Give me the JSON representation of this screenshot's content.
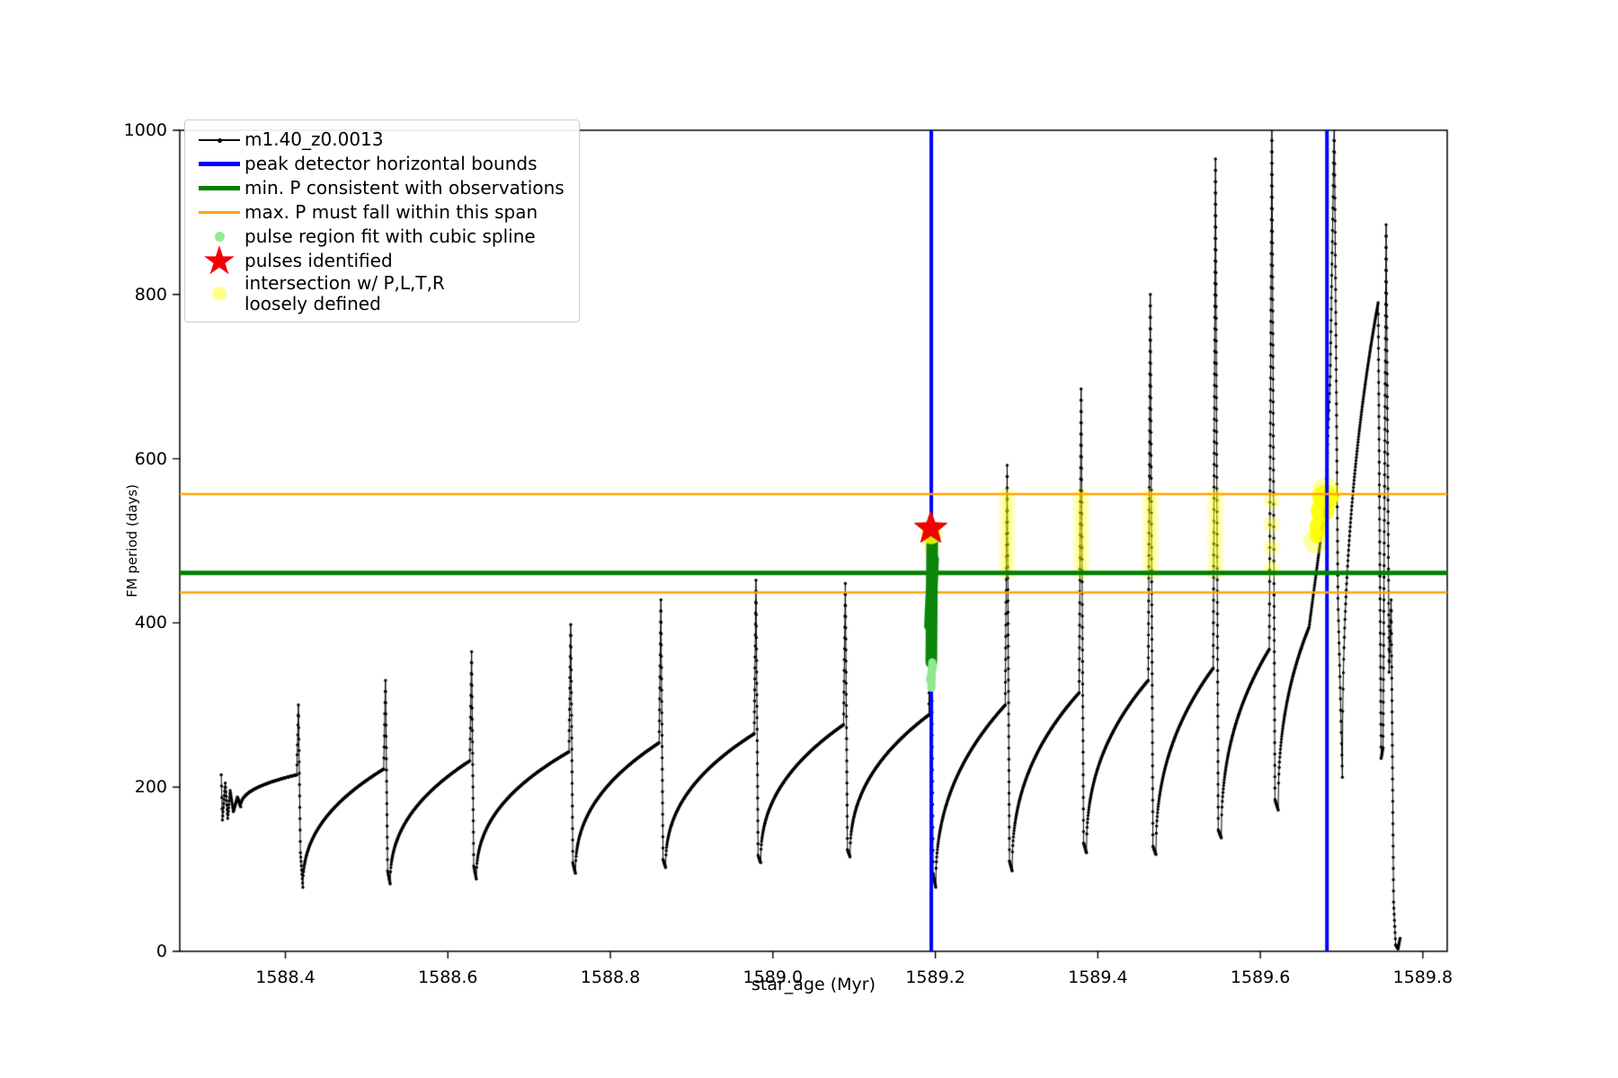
{
  "axes": {
    "xlabel": "star_age (Myr)",
    "ylabel": "FM period (days)",
    "x_ticks": [
      "1588.4",
      "1588.6",
      "1588.8",
      "1589.0",
      "1589.2",
      "1589.4",
      "1589.6",
      "1589.8"
    ],
    "y_ticks": [
      "0",
      "200",
      "400",
      "600",
      "800",
      "1000"
    ]
  },
  "legend": {
    "items": [
      {
        "id": "series",
        "marker": "line",
        "color": "#000000",
        "label": "m1.40_z0.0013"
      },
      {
        "id": "peak-bounds",
        "marker": "thick",
        "color": "#0000ff",
        "label": "peak detector horizontal bounds"
      },
      {
        "id": "min-p",
        "marker": "thick",
        "color": "#007f00",
        "label": "min. P consistent with observations"
      },
      {
        "id": "max-p",
        "marker": "thin",
        "color": "#ffa500",
        "label": "max. P must fall within this span"
      },
      {
        "id": "pulse-region",
        "marker": "dot",
        "color": "#90ee90",
        "label": "pulse region fit with cubic spline"
      },
      {
        "id": "pulses",
        "marker": "star",
        "color": "#f40000",
        "label": "pulses identified"
      },
      {
        "id": "intersection",
        "marker": "paledot",
        "color": "rgba(255,255,130,0.9)",
        "label": "intersection w/ P,L,T,R",
        "label2": "loosely defined"
      }
    ]
  },
  "chart_data": {
    "type": "line",
    "series_name": "m1.40_z0.0013",
    "xlabel": "star_age (Myr)",
    "ylabel": "FM period (days)",
    "xlim": [
      1588.27,
      1589.83
    ],
    "ylim": [
      0,
      1000
    ],
    "x_tick_values": [
      1588.4,
      1588.6,
      1588.8,
      1589.0,
      1589.2,
      1589.4,
      1589.6,
      1589.8
    ],
    "y_tick_values": [
      0,
      200,
      400,
      600,
      800,
      1000
    ],
    "line_color": "#000000",
    "anchors": [
      [
        1588.321,
        215,
        "m"
      ],
      [
        1588.3225,
        160,
        "l"
      ],
      [
        1588.326,
        205,
        "l"
      ],
      [
        1588.329,
        162,
        "l"
      ],
      [
        1588.332,
        196,
        "l"
      ],
      [
        1588.336,
        170,
        "l"
      ],
      [
        1588.341,
        188,
        "l"
      ],
      [
        1588.345,
        176,
        "l"
      ],
      [
        1588.414,
        215,
        "r"
      ],
      [
        1588.416,
        300,
        "l"
      ],
      [
        1588.4185,
        120,
        "l"
      ],
      [
        1588.4215,
        78,
        "l"
      ],
      [
        1588.521,
        222,
        "r"
      ],
      [
        1588.5232,
        330,
        "l"
      ],
      [
        1588.5258,
        98,
        "l"
      ],
      [
        1588.529,
        82,
        "l"
      ],
      [
        1588.627,
        232,
        "r"
      ],
      [
        1588.6292,
        365,
        "l"
      ],
      [
        1588.6318,
        104,
        "l"
      ],
      [
        1588.635,
        88,
        "l"
      ],
      [
        1588.749,
        243,
        "r"
      ],
      [
        1588.7512,
        398,
        "l"
      ],
      [
        1588.7538,
        108,
        "l"
      ],
      [
        1588.757,
        95,
        "l"
      ],
      [
        1588.86,
        254,
        "r"
      ],
      [
        1588.8622,
        428,
        "l"
      ],
      [
        1588.8648,
        112,
        "l"
      ],
      [
        1588.868,
        102,
        "l"
      ],
      [
        1588.977,
        265,
        "r"
      ],
      [
        1588.9792,
        452,
        "l"
      ],
      [
        1588.9818,
        117,
        "l"
      ],
      [
        1588.985,
        108,
        "l"
      ],
      [
        1589.087,
        276,
        "r"
      ],
      [
        1589.0892,
        448,
        "l"
      ],
      [
        1589.0918,
        124,
        "l"
      ],
      [
        1589.095,
        115,
        "l"
      ],
      [
        1589.192,
        288,
        "r"
      ],
      [
        1589.1944,
        515,
        "l"
      ],
      [
        1589.1972,
        95,
        "l"
      ],
      [
        1589.2005,
        78,
        "l"
      ],
      [
        1589.286,
        300,
        "r"
      ],
      [
        1589.2884,
        592,
        "l"
      ],
      [
        1589.2912,
        110,
        "l"
      ],
      [
        1589.2945,
        98,
        "l"
      ],
      [
        1589.377,
        315,
        "r"
      ],
      [
        1589.3794,
        685,
        "l"
      ],
      [
        1589.3824,
        132,
        "l"
      ],
      [
        1589.386,
        120,
        "l"
      ],
      [
        1589.462,
        330,
        "r"
      ],
      [
        1589.4646,
        800,
        "l"
      ],
      [
        1589.4678,
        128,
        "l"
      ],
      [
        1589.4715,
        118,
        "l"
      ],
      [
        1589.542,
        345,
        "r"
      ],
      [
        1589.5448,
        965,
        "l"
      ],
      [
        1589.5482,
        148,
        "l"
      ],
      [
        1589.552,
        138,
        "l"
      ],
      [
        1589.611,
        368,
        "r"
      ],
      [
        1589.6142,
        1015,
        "l"
      ],
      [
        1589.618,
        185,
        "l"
      ],
      [
        1589.622,
        172,
        "l"
      ],
      [
        1589.66,
        395,
        "r"
      ],
      [
        1589.67,
        470,
        "l"
      ],
      [
        1589.68,
        545,
        "l"
      ],
      [
        1589.686,
        700,
        "l"
      ],
      [
        1589.691,
        1015,
        "l"
      ],
      [
        1589.6955,
        430,
        "l"
      ],
      [
        1589.701,
        212,
        "l"
      ],
      [
        1589.745,
        790,
        "r"
      ],
      [
        1589.7487,
        235,
        "l"
      ],
      [
        1589.751,
        248,
        "l"
      ],
      [
        1589.7548,
        885,
        "l"
      ],
      [
        1589.7585,
        340,
        "l"
      ],
      [
        1589.761,
        428,
        "l"
      ],
      [
        1589.764,
        60,
        "l"
      ],
      [
        1589.7665,
        8,
        "l"
      ],
      [
        1589.7695,
        3,
        "l"
      ],
      [
        1589.772,
        16,
        "l"
      ]
    ],
    "vlines": {
      "color": "#0000ff",
      "width": 4,
      "x": [
        1589.195,
        1589.682
      ],
      "label": "peak detector horizontal bounds"
    },
    "hlines": [
      {
        "y": 557,
        "color": "#ffa500",
        "width": 2.5,
        "label": "max. P must fall within this span"
      },
      {
        "y": 437,
        "color": "#ffa500",
        "width": 2.5,
        "label": "max. P must fall within this span"
      },
      {
        "y": 461,
        "color": "#007f00",
        "width": 5,
        "label": "min. P consistent with observations"
      }
    ],
    "pulse_star": {
      "t": 1589.1944,
      "P": 515,
      "color": "#f40000",
      "outer_r": 19
    },
    "star_halo": {
      "t": 1589.1947,
      "P": 508,
      "r": 11,
      "color": "rgba(255,255,0,0.85)"
    },
    "spline_cluster": {
      "t": 1589.195,
      "segments": [
        {
          "P0": 352,
          "P1": 500,
          "color": "#0b860b",
          "width": 13
        },
        {
          "P0": 321,
          "P1": 352,
          "color": "#90e890",
          "width": 9
        }
      ],
      "extra_dots": [
        {
          "t": 1589.1958,
          "P": 497,
          "r": 5,
          "color": "#90e890"
        },
        {
          "t": 1589.1942,
          "P": 489,
          "r": 5,
          "color": "#90e890"
        }
      ]
    },
    "intersection_columns": {
      "outer_color": "rgba(255,255,0,0.20)",
      "inner_color": "rgba(255,255,0,0.30)",
      "r": 10,
      "columns": [
        {
          "t": 1589.1946,
          "P": [
            505,
            492
          ]
        },
        {
          "t": 1589.2884,
          "P": [
            554,
            541,
            528,
            515,
            502,
            489,
            476,
            463
          ]
        },
        {
          "t": 1589.3794,
          "P": [
            554,
            541,
            528,
            515,
            502,
            489,
            476,
            463
          ]
        },
        {
          "t": 1589.4646,
          "P": [
            554,
            541,
            528,
            515,
            502,
            489,
            476,
            463
          ]
        },
        {
          "t": 1589.5448,
          "P": [
            554,
            541,
            528,
            515,
            502,
            489,
            476,
            463
          ]
        },
        {
          "t": 1589.6142,
          "P": [
            548,
            520,
            492,
            466
          ]
        }
      ]
    },
    "intersection_blob": {
      "color": "rgba(255,255,0,0.92)",
      "circles": [
        [
          1589.68,
          553,
          14
        ],
        [
          1589.6765,
          537,
          13
        ],
        [
          1589.6725,
          518,
          11
        ],
        [
          1589.6695,
          506,
          8
        ]
      ],
      "halo": [
        [
          1589.6815,
          558,
          13
        ],
        [
          1589.6685,
          500,
          10
        ]
      ]
    }
  }
}
